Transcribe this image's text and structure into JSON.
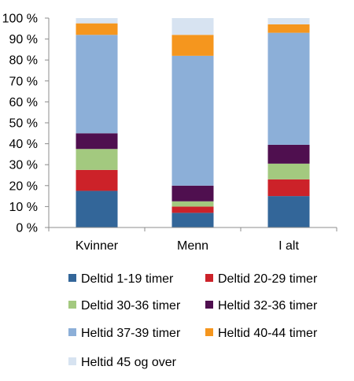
{
  "chart_data": {
    "type": "bar",
    "stacked": true,
    "categories": [
      "Kvinner",
      "Menn",
      "I alt"
    ],
    "ylim": [
      0,
      100
    ],
    "yticks": [
      0,
      10,
      20,
      30,
      40,
      50,
      60,
      70,
      80,
      90,
      100
    ],
    "ytick_labels": [
      "0 %",
      "10 %",
      "20 %",
      "30 %",
      "40 %",
      "50 %",
      "60 %",
      "70 %",
      "80 %",
      "90 %",
      "100 %"
    ],
    "grid": false,
    "legend_position": "bottom",
    "series": [
      {
        "name": "Deltid 1-19 timer",
        "color": "#336699",
        "values": [
          17.5,
          7.0,
          15.0
        ]
      },
      {
        "name": "Deltid 20-29 timer",
        "color": "#cc2229",
        "values": [
          10.0,
          3.0,
          8.0
        ]
      },
      {
        "name": "Deltid 30-36 timer",
        "color": "#a3c97f",
        "values": [
          10.0,
          2.5,
          7.5
        ]
      },
      {
        "name": "Heltid 32-36 timer",
        "color": "#4f0f4f",
        "values": [
          7.5,
          7.5,
          9.0
        ]
      },
      {
        "name": "Heltid 37-39 timer",
        "color": "#8cafd8",
        "values": [
          47.0,
          62.0,
          53.5
        ]
      },
      {
        "name": "Heltid 40-44 timer",
        "color": "#f5961e",
        "values": [
          5.5,
          10.0,
          4.0
        ]
      },
      {
        "name": "Heltid 45 og over",
        "color": "#d7e3f1",
        "values": [
          2.5,
          8.0,
          3.0
        ]
      }
    ]
  }
}
